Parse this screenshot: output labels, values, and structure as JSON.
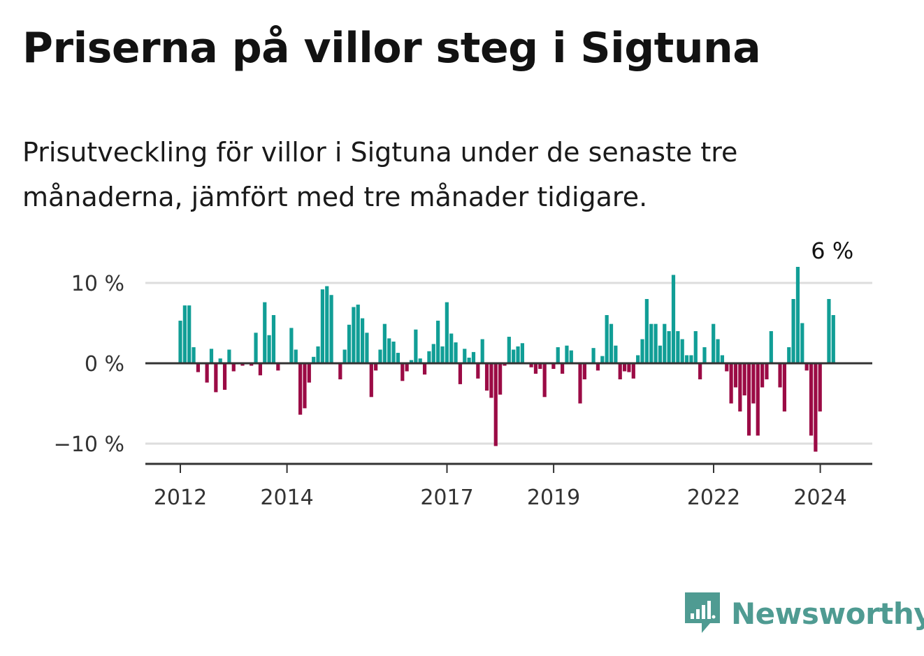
{
  "title": "Priserna på villor steg i Sigtuna",
  "subtitle": "Prisutveckling för villor i Sigtuna under de senaste tre månaderna, jämfört med tre månader tidigare.",
  "brand": {
    "name": "Newsworthy",
    "icon": "newsworthy-logo-icon",
    "color": "#4f9b92"
  },
  "colors": {
    "positive": "#119e96",
    "negative": "#9b0b45",
    "grid": "#dddddd",
    "axis": "#333333"
  },
  "chart_data": {
    "type": "bar",
    "title": "Priserna på villor steg i Sigtuna",
    "xlabel": "",
    "ylabel": "",
    "ylim": [
      -12.5,
      12.5
    ],
    "yticks": [
      {
        "value": 10,
        "label": "10 %"
      },
      {
        "value": 0,
        "label": "0 %"
      },
      {
        "value": -10,
        "label": "−10 %"
      }
    ],
    "xticks": [
      {
        "value": 2012,
        "label": "2012"
      },
      {
        "value": 2014,
        "label": "2014"
      },
      {
        "value": 2017,
        "label": "2017"
      },
      {
        "value": 2019,
        "label": "2019"
      },
      {
        "value": 2022,
        "label": "2022"
      },
      {
        "value": 2024,
        "label": "2024"
      }
    ],
    "x_start": 2012.0,
    "x_step": 0.0833,
    "values": [
      5.3,
      7.2,
      7.2,
      2.0,
      -1.1,
      0,
      -2.4,
      1.8,
      -3.6,
      0.6,
      -3.3,
      1.7,
      -1.0,
      0,
      -0.3,
      0,
      -0.3,
      3.8,
      -1.5,
      7.6,
      3.5,
      6.0,
      -0.9,
      0,
      0,
      4.4,
      1.7,
      -6.4,
      -5.6,
      -2.4,
      0.8,
      2.1,
      9.2,
      9.6,
      8.5,
      0,
      -2.0,
      1.7,
      4.8,
      7.0,
      7.3,
      5.6,
      3.8,
      -4.2,
      -0.9,
      1.7,
      4.9,
      3.1,
      2.7,
      1.3,
      -2.2,
      -1.0,
      0.4,
      4.2,
      0.6,
      -1.4,
      1.5,
      2.4,
      5.3,
      2.1,
      7.6,
      3.7,
      2.6,
      -2.6,
      1.8,
      0.7,
      1.4,
      -1.9,
      3.0,
      -3.4,
      -4.3,
      -10.3,
      -3.9,
      -0.3,
      3.3,
      1.7,
      2.1,
      2.5,
      0,
      -0.5,
      -1.3,
      -0.7,
      -4.2,
      0,
      -0.7,
      2.0,
      -1.3,
      2.2,
      1.6,
      0,
      -5.0,
      -2.0,
      0,
      1.9,
      -0.9,
      0.9,
      6.0,
      4.9,
      2.2,
      -2.0,
      -1.0,
      -1.1,
      -1.9,
      1.0,
      3.0,
      8.0,
      4.9,
      4.9,
      2.2,
      4.9,
      4.0,
      11.0,
      4.0,
      3.0,
      1.0,
      1.0,
      4.0,
      -2.0,
      2.0,
      0,
      4.9,
      3.0,
      1.0,
      -1.0,
      -5.0,
      -3.0,
      -6.0,
      -4.0,
      -9.0,
      -5.0,
      -9.0,
      -3.0,
      -2.0,
      4.0,
      0,
      -3.0,
      -6.0,
      2.0,
      8.0,
      12.0,
      5.0,
      -0.9,
      -9.0,
      -11.0,
      -6.0,
      0,
      8.0,
      6.0
    ],
    "last_label": "6 %"
  }
}
